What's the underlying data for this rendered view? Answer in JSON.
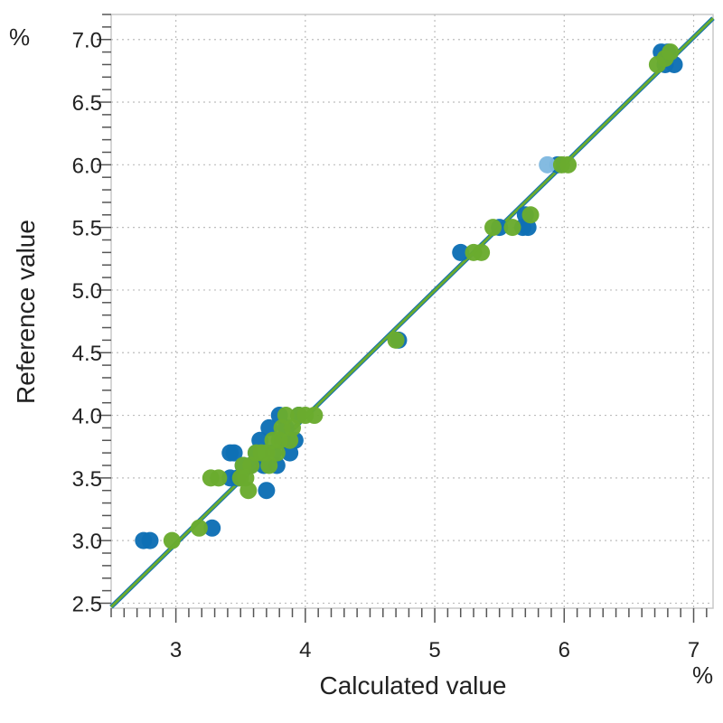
{
  "chart_data": {
    "type": "scatter",
    "title": "",
    "xlabel": "Calculated value",
    "ylabel": "Reference value",
    "x_unit": "%",
    "y_unit": "%",
    "xlim": [
      2.5,
      7.15
    ],
    "ylim": [
      2.46,
      7.2
    ],
    "x_ticks": [
      3,
      4,
      5,
      6,
      7
    ],
    "x_tick_labels": [
      "3",
      "4",
      "5",
      "6",
      "7"
    ],
    "y_ticks": [
      2.5,
      3.0,
      3.5,
      4.0,
      4.5,
      5.0,
      5.5,
      6.0,
      6.5,
      7.0
    ],
    "y_tick_labels": [
      "2.5",
      "3.0",
      "3.5",
      "4.0",
      "4.5",
      "5.0",
      "5.5",
      "6.0",
      "6.5",
      "7.0"
    ],
    "grid": true,
    "legend": "none",
    "regression_line": {
      "x": [
        2.5,
        7.15
      ],
      "y": [
        2.47,
        7.17
      ],
      "color": "#6aab2e"
    },
    "series": [
      {
        "color": "#0e6fb5",
        "points": [
          [
            2.75,
            3.0
          ],
          [
            2.8,
            3.0
          ],
          [
            3.28,
            3.1
          ],
          [
            3.42,
            3.7
          ],
          [
            3.45,
            3.7
          ],
          [
            3.42,
            3.5
          ],
          [
            3.48,
            3.5
          ],
          [
            3.52,
            3.6
          ],
          [
            3.58,
            3.6
          ],
          [
            3.62,
            3.7
          ],
          [
            3.65,
            3.8
          ],
          [
            3.68,
            3.6
          ],
          [
            3.7,
            3.4
          ],
          [
            3.72,
            3.9
          ],
          [
            3.75,
            3.7
          ],
          [
            3.78,
            3.6
          ],
          [
            3.8,
            4.0
          ],
          [
            3.82,
            3.8
          ],
          [
            3.85,
            3.9
          ],
          [
            3.88,
            3.7
          ],
          [
            3.92,
            3.8
          ],
          [
            3.95,
            4.0
          ],
          [
            5.2,
            5.3
          ],
          [
            5.5,
            5.5
          ],
          [
            5.68,
            5.5
          ],
          [
            5.72,
            5.5
          ],
          [
            5.7,
            5.6
          ],
          [
            5.95,
            6.0
          ],
          [
            6.75,
            6.9
          ],
          [
            6.8,
            6.9
          ],
          [
            6.78,
            6.8
          ],
          [
            6.85,
            6.8
          ],
          [
            4.72,
            4.6
          ]
        ]
      },
      {
        "color": "#80b9e0",
        "points": [
          [
            5.87,
            6.0
          ]
        ]
      },
      {
        "color": "#6aab2e",
        "points": [
          [
            2.97,
            3.0
          ],
          [
            3.18,
            3.1
          ],
          [
            3.27,
            3.5
          ],
          [
            3.33,
            3.5
          ],
          [
            3.5,
            3.5
          ],
          [
            3.54,
            3.5
          ],
          [
            3.56,
            3.4
          ],
          [
            3.52,
            3.6
          ],
          [
            3.58,
            3.6
          ],
          [
            3.62,
            3.7
          ],
          [
            3.66,
            3.7
          ],
          [
            3.7,
            3.7
          ],
          [
            3.72,
            3.6
          ],
          [
            3.75,
            3.8
          ],
          [
            3.78,
            3.7
          ],
          [
            3.8,
            3.8
          ],
          [
            3.82,
            3.9
          ],
          [
            3.85,
            4.0
          ],
          [
            3.88,
            3.8
          ],
          [
            3.9,
            3.9
          ],
          [
            3.95,
            4.0
          ],
          [
            4.0,
            4.0
          ],
          [
            4.07,
            4.0
          ],
          [
            4.7,
            4.6
          ],
          [
            5.3,
            5.3
          ],
          [
            5.36,
            5.3
          ],
          [
            5.45,
            5.5
          ],
          [
            5.6,
            5.5
          ],
          [
            5.74,
            5.6
          ],
          [
            5.98,
            6.0
          ],
          [
            6.03,
            6.0
          ],
          [
            6.72,
            6.8
          ],
          [
            6.78,
            6.85
          ],
          [
            6.82,
            6.9
          ]
        ]
      }
    ]
  }
}
